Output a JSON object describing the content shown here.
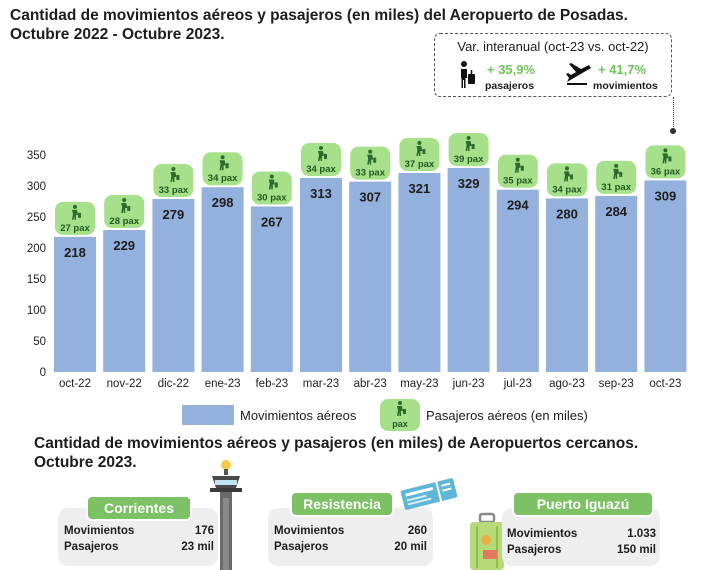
{
  "title_line1": "Cantidad de movimientos aéreos y pasajeros (en miles) del Aeropuerto de Posadas.",
  "title_line2": "Octubre 2022 - Octubre 2023.",
  "variation": {
    "title": "Var. interanual (oct-23 vs. oct-22)",
    "passengers_pct": "+ 35,9%",
    "passengers_label": "pasajeros",
    "movements_pct": "+ 41,7%",
    "movements_label": "movimientos"
  },
  "legend": {
    "movements": "Movimientos aéreos",
    "passengers": "Pasajeros aéreos (en miles)",
    "pax_badge": "pax"
  },
  "colors": {
    "bar": "#94b0dc",
    "pax_badge": "#a6e08b",
    "pax_text": "#1f5a1f",
    "accent_green": "#7cc163",
    "pct_green": "#6cc55a"
  },
  "chart_data": {
    "type": "bar",
    "categories": [
      "oct-22",
      "nov-22",
      "dic-22",
      "ene-23",
      "feb-23",
      "mar-23",
      "abr-23",
      "may-23",
      "jun-23",
      "jul-23",
      "ago-23",
      "sep-23",
      "oct-23"
    ],
    "series": [
      {
        "name": "Movimientos aéreos",
        "values": [
          218,
          229,
          279,
          298,
          267,
          313,
          307,
          321,
          329,
          294,
          280,
          284,
          309
        ]
      },
      {
        "name": "Pasajeros aéreos (en miles)",
        "values": [
          27,
          28,
          33,
          34,
          30,
          34,
          33,
          37,
          39,
          35,
          34,
          31,
          36
        ]
      }
    ],
    "bar_labels": [
      "218",
      "229",
      "279",
      "298",
      "267",
      "313",
      "307",
      "321",
      "329",
      "294",
      "280",
      "284",
      "309"
    ],
    "pax_labels": [
      "27 pax",
      "28 pax",
      "33 pax",
      "34 pax",
      "30 pax",
      "34 pax",
      "33 pax",
      "37 pax",
      "39 pax",
      "35 pax",
      "34 pax",
      "31 pax",
      "36 pax"
    ],
    "yticks": [
      "0",
      "50",
      "100",
      "150",
      "200",
      "250",
      "300",
      "350"
    ],
    "ylim": [
      0,
      350
    ],
    "legend_position": "bottom",
    "grid": false
  },
  "subtitle_line1": "Cantidad de movimientos aéreos y pasajeros (en miles) de Aeropuertos cercanos.",
  "subtitle_line2": "Octubre 2023.",
  "airports": [
    {
      "name": "Corrientes",
      "movements_label": "Movimientos",
      "movements": "176",
      "passengers_label": "Pasajeros",
      "passengers": "23 mil"
    },
    {
      "name": "Resistencia",
      "movements_label": "Movimientos",
      "movements": "260",
      "passengers_label": "Pasajeros",
      "passengers": "20 mil"
    },
    {
      "name": "Puerto Iguazú",
      "movements_label": "Movimientos",
      "movements": "1.033",
      "passengers_label": "Pasajeros",
      "passengers": "150 mil"
    }
  ],
  "icons": {
    "traveler": "traveler-luggage-icon",
    "airplane": "airplane-takeoff-icon",
    "tower": "control-tower-icon",
    "ticket": "boarding-pass-icon",
    "suitcase": "suitcase-icon"
  }
}
